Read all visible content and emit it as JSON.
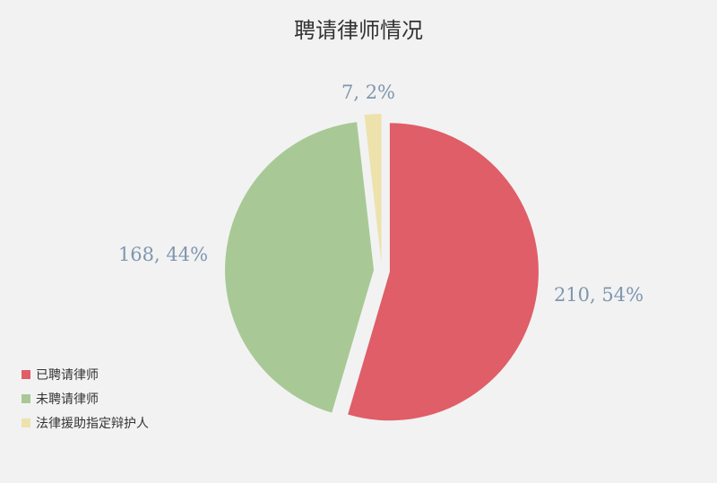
{
  "chart_data": {
    "type": "pie",
    "title": "聘请律师情况",
    "slices": [
      {
        "label": "已聘请律师",
        "value": 210,
        "percent": "54%",
        "color": "#df5e67"
      },
      {
        "label": "未聘请律师",
        "value": 168,
        "percent": "44%",
        "color": "#a8c995"
      },
      {
        "label": "法律援助指定辩护人",
        "value": 7,
        "percent": "2%",
        "color": "#ede2ac"
      }
    ],
    "legend_position": "bottom-left",
    "start_angle_deg": 0,
    "clockwise": true,
    "exploded": true,
    "data_labels": [
      "210, 54%",
      "168, 44%",
      "7, 2%"
    ]
  }
}
